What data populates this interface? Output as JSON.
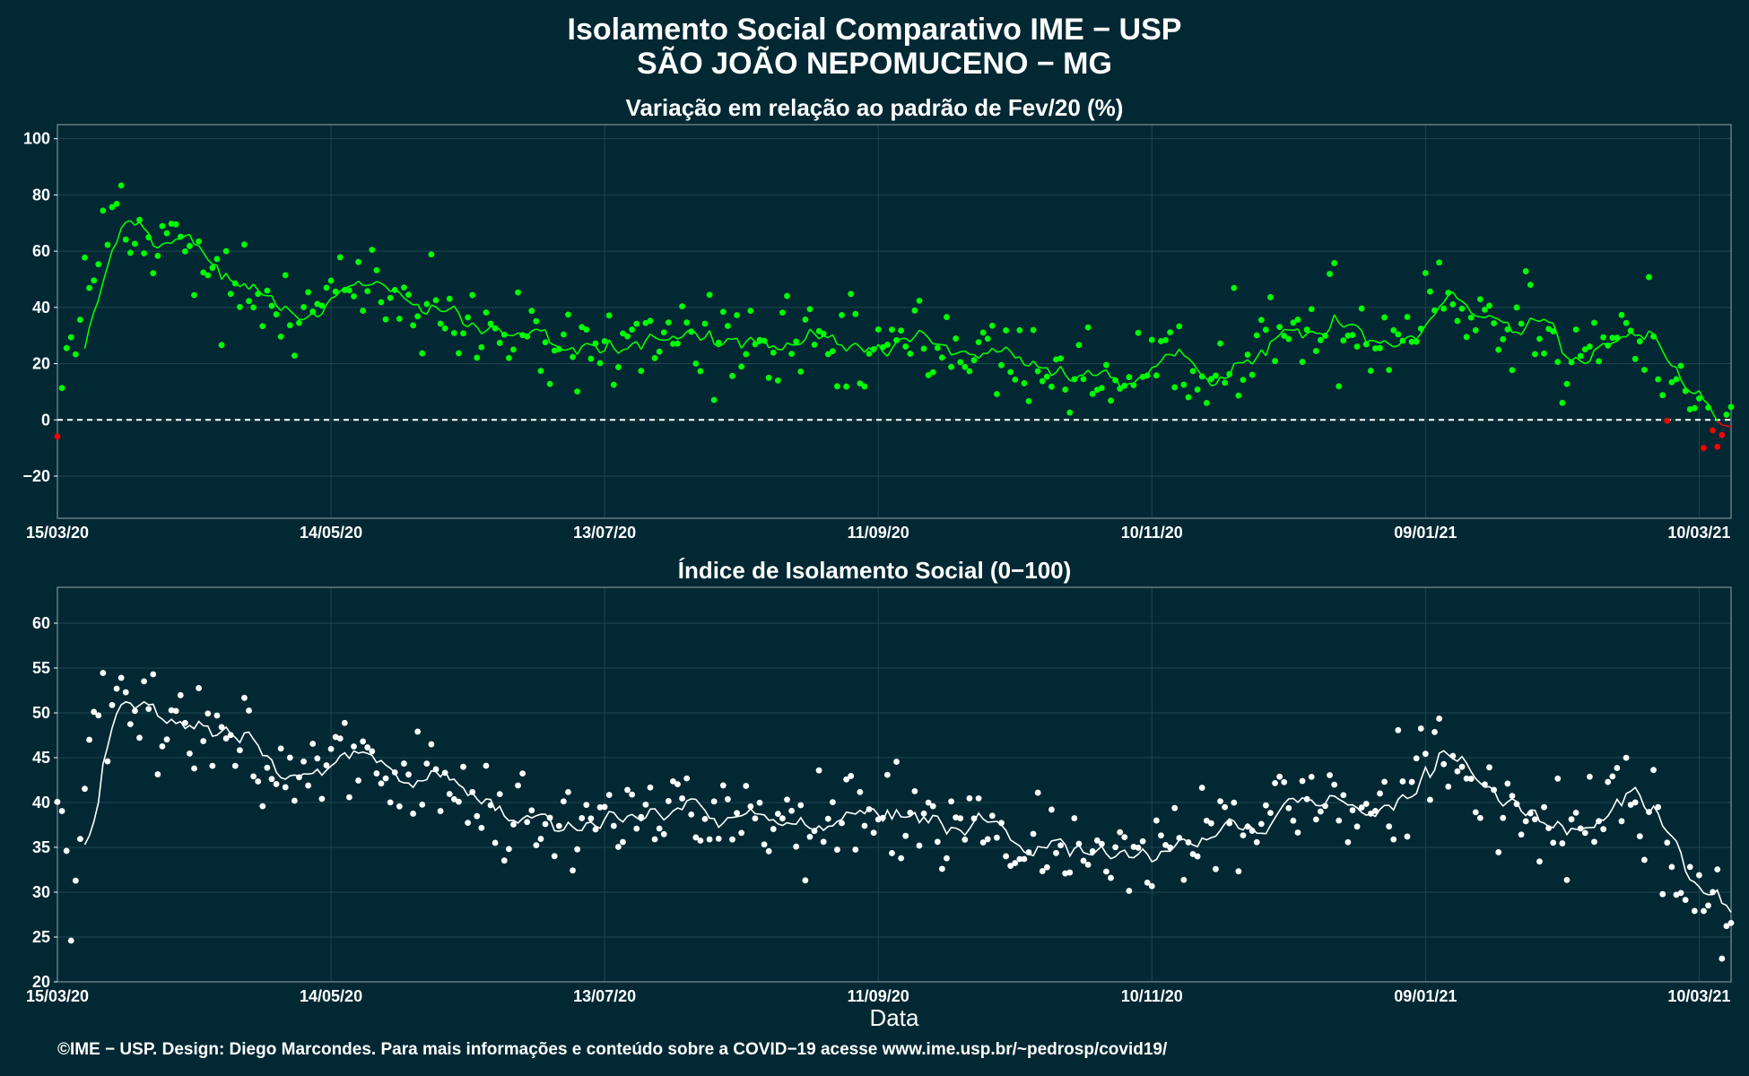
{
  "figure": {
    "title_line1": "Isolamento Social Comparativo IME − USP",
    "title_line2": "SÃO JOÃO NEPOMUCENO − MG",
    "xlabel": "Data",
    "caption": "©IME − USP. Design: Diego Marcondes. Para mais informações e conteúdo sobre a COVID−19 acesse www.ime.usp.br/~pedrosp/covid19/",
    "colors": {
      "background": "#022833",
      "grid": "#1f4650",
      "positive": "#00ff00",
      "negative": "#ff0000",
      "white": "#ffffff"
    }
  },
  "chart_data": [
    {
      "type": "scatter",
      "title": "Variação em relação ao padrão de Fev/20 (%)",
      "x_ticks": [
        "15/03/20",
        "14/05/20",
        "13/07/20",
        "11/09/20",
        "10/11/20",
        "09/01/21",
        "10/03/21"
      ],
      "x_tick_days": [
        0,
        60,
        120,
        180,
        240,
        300,
        360
      ],
      "xlim": [
        0,
        367
      ],
      "ylim": [
        -35,
        105
      ],
      "y_ticks": [
        -20,
        0,
        20,
        40,
        60,
        80,
        100
      ],
      "reference_line": 0,
      "smooth_line": "7-day moving average",
      "anchors": [
        [
          0,
          4
        ],
        [
          3,
          25
        ],
        [
          6,
          34
        ],
        [
          9,
          68
        ],
        [
          12,
          70
        ],
        [
          15,
          62
        ],
        [
          20,
          57
        ],
        [
          25,
          60
        ],
        [
          30,
          56
        ],
        [
          35,
          45
        ],
        [
          45,
          40
        ],
        [
          55,
          44
        ],
        [
          62,
          46
        ],
        [
          70,
          40
        ],
        [
          80,
          42
        ],
        [
          90,
          33
        ],
        [
          100,
          24
        ],
        [
          110,
          25
        ],
        [
          120,
          24
        ],
        [
          125,
          25
        ],
        [
          130,
          28
        ],
        [
          140,
          26
        ],
        [
          150,
          27
        ],
        [
          160,
          22
        ],
        [
          170,
          21
        ],
        [
          180,
          22
        ],
        [
          190,
          26
        ],
        [
          200,
          22
        ],
        [
          210,
          16
        ],
        [
          220,
          18
        ],
        [
          225,
          16
        ],
        [
          230,
          13
        ],
        [
          235,
          13
        ],
        [
          240,
          13
        ],
        [
          245,
          14
        ],
        [
          250,
          18
        ],
        [
          255,
          20
        ],
        [
          260,
          24
        ],
        [
          265,
          25
        ],
        [
          270,
          29
        ],
        [
          275,
          32
        ],
        [
          285,
          30
        ],
        [
          295,
          32
        ],
        [
          300,
          45
        ],
        [
          303,
          48
        ],
        [
          307,
          40
        ],
        [
          315,
          34
        ],
        [
          320,
          33
        ],
        [
          325,
          36
        ],
        [
          330,
          26
        ],
        [
          335,
          24
        ],
        [
          340,
          30
        ],
        [
          345,
          30
        ],
        [
          350,
          25
        ],
        [
          352,
          12
        ],
        [
          355,
          6
        ],
        [
          358,
          2
        ],
        [
          360,
          -2
        ],
        [
          363,
          -5
        ],
        [
          365,
          -7
        ],
        [
          367,
          3
        ]
      ],
      "noise": 11
    },
    {
      "type": "scatter",
      "title": "Índice de Isolamento Social (0−100)",
      "x_ticks": [
        "15/03/20",
        "14/05/20",
        "13/07/20",
        "11/09/20",
        "10/11/20",
        "09/01/21",
        "10/03/21"
      ],
      "x_tick_days": [
        0,
        60,
        120,
        180,
        240,
        300,
        360
      ],
      "xlim": [
        0,
        367
      ],
      "ylim": [
        20,
        64
      ],
      "y_ticks": [
        20,
        25,
        30,
        35,
        40,
        45,
        50,
        55,
        60
      ],
      "smooth_line": "7-day moving average",
      "anchors": [
        [
          0,
          40
        ],
        [
          3,
          30
        ],
        [
          6,
          38
        ],
        [
          9,
          49
        ],
        [
          12,
          52
        ],
        [
          15,
          49
        ],
        [
          20,
          48
        ],
        [
          25,
          47
        ],
        [
          30,
          48
        ],
        [
          35,
          46
        ],
        [
          45,
          43
        ],
        [
          55,
          43
        ],
        [
          62,
          44
        ],
        [
          70,
          42
        ],
        [
          80,
          42
        ],
        [
          90,
          39
        ],
        [
          100,
          37
        ],
        [
          110,
          37
        ],
        [
          120,
          38
        ],
        [
          125,
          38
        ],
        [
          130,
          39
        ],
        [
          140,
          38
        ],
        [
          150,
          38
        ],
        [
          160,
          37
        ],
        [
          170,
          37
        ],
        [
          180,
          37
        ],
        [
          190,
          38
        ],
        [
          200,
          36
        ],
        [
          210,
          34
        ],
        [
          220,
          35
        ],
        [
          225,
          34
        ],
        [
          230,
          33
        ],
        [
          235,
          34
        ],
        [
          240,
          34
        ],
        [
          245,
          35
        ],
        [
          250,
          36
        ],
        [
          255,
          36
        ],
        [
          260,
          38
        ],
        [
          265,
          39
        ],
        [
          270,
          40
        ],
        [
          275,
          40
        ],
        [
          285,
          39
        ],
        [
          295,
          40
        ],
        [
          300,
          44
        ],
        [
          303,
          45
        ],
        [
          307,
          41
        ],
        [
          315,
          40
        ],
        [
          320,
          39
        ],
        [
          325,
          38
        ],
        [
          330,
          38
        ],
        [
          335,
          37
        ],
        [
          340,
          39
        ],
        [
          345,
          40
        ],
        [
          350,
          38
        ],
        [
          352,
          34
        ],
        [
          355,
          30
        ],
        [
          358,
          30
        ],
        [
          360,
          30
        ],
        [
          363,
          30
        ],
        [
          365,
          26
        ],
        [
          367,
          27
        ]
      ],
      "noise": 3.5
    }
  ]
}
